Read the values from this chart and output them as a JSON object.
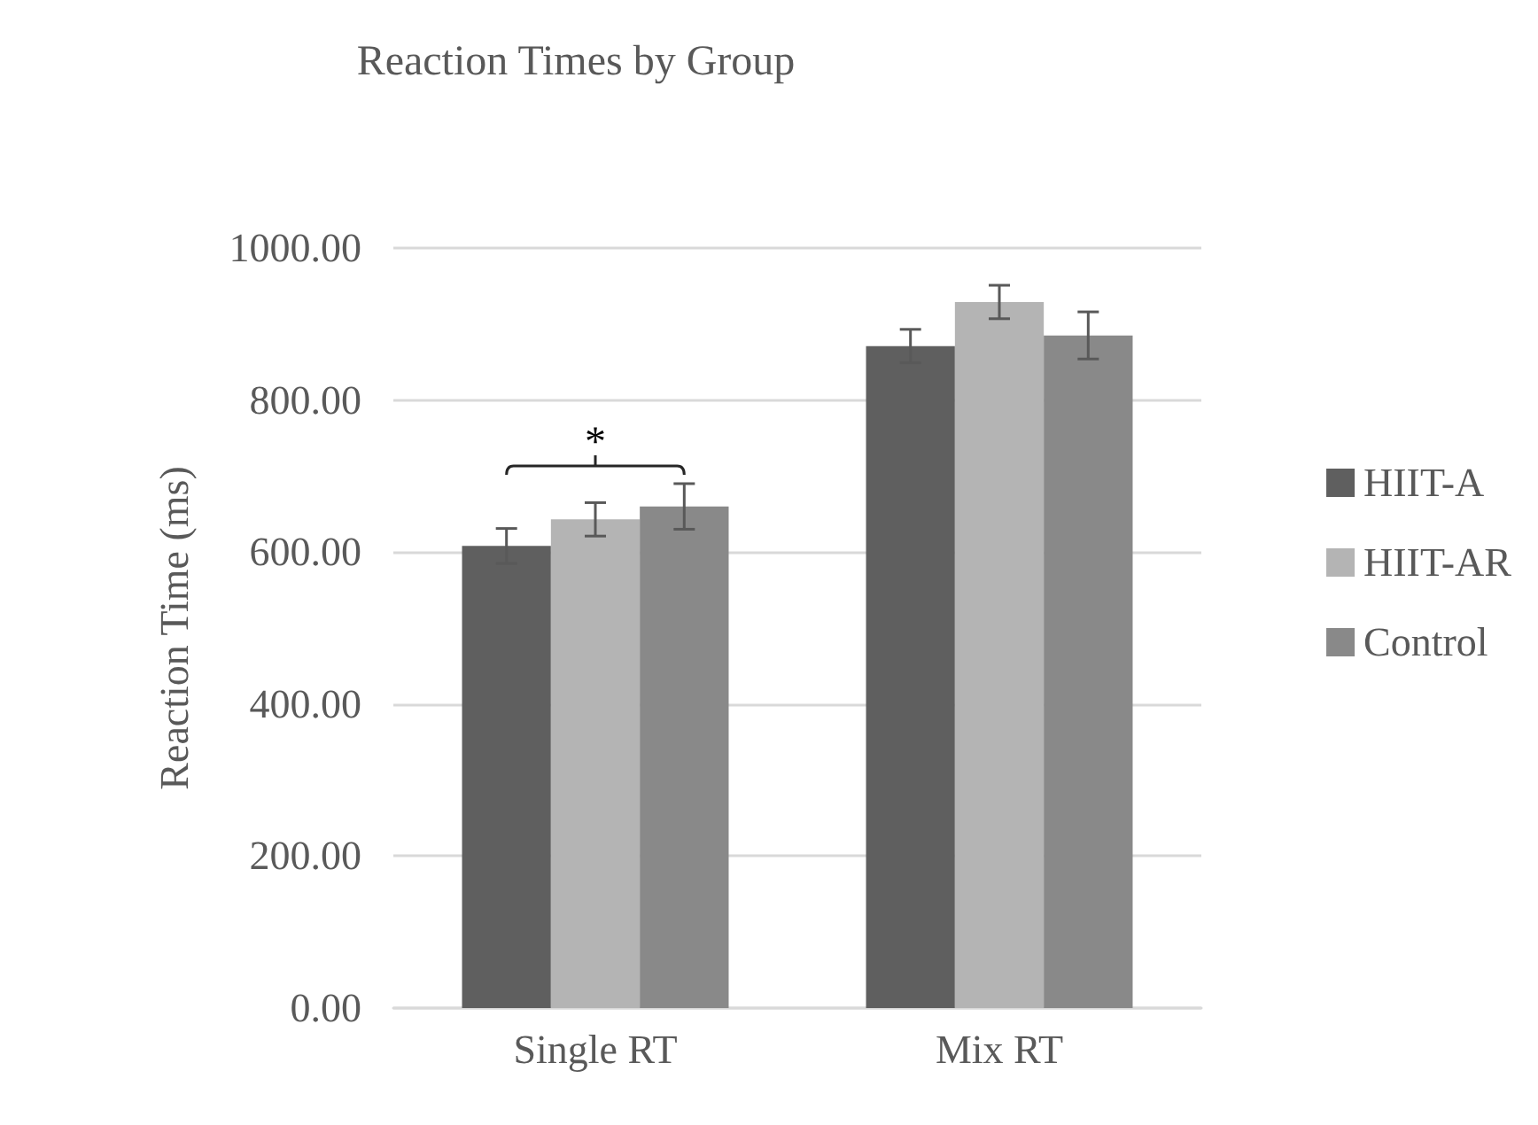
{
  "chart_data": {
    "type": "bar",
    "title": "Reaction Times by Group",
    "ylabel": "Reaction Time (ms)",
    "categories": [
      "Single RT",
      "Mix RT"
    ],
    "series": [
      {
        "name": "HIIT-A",
        "color": "#5f5f5f",
        "values": [
          608,
          871
        ],
        "errors": [
          23,
          22
        ]
      },
      {
        "name": "HIIT-AR",
        "color": "#b4b4b4",
        "values": [
          643,
          929
        ],
        "errors": [
          22,
          22
        ]
      },
      {
        "name": "Control",
        "color": "#898989",
        "values": [
          660,
          885
        ],
        "errors": [
          30,
          31
        ]
      }
    ],
    "ylim": [
      0,
      1000
    ],
    "yticks": [
      {
        "value": 0,
        "label": "0.00"
      },
      {
        "value": 200,
        "label": "200.00"
      },
      {
        "value": 400,
        "label": "400.00"
      },
      {
        "value": 600,
        "label": "600.00"
      },
      {
        "value": 800,
        "label": "800.00"
      },
      {
        "value": 1000,
        "label": "1000.00"
      }
    ],
    "grid": "y",
    "legend": "right",
    "annotations": [
      "*"
    ]
  }
}
